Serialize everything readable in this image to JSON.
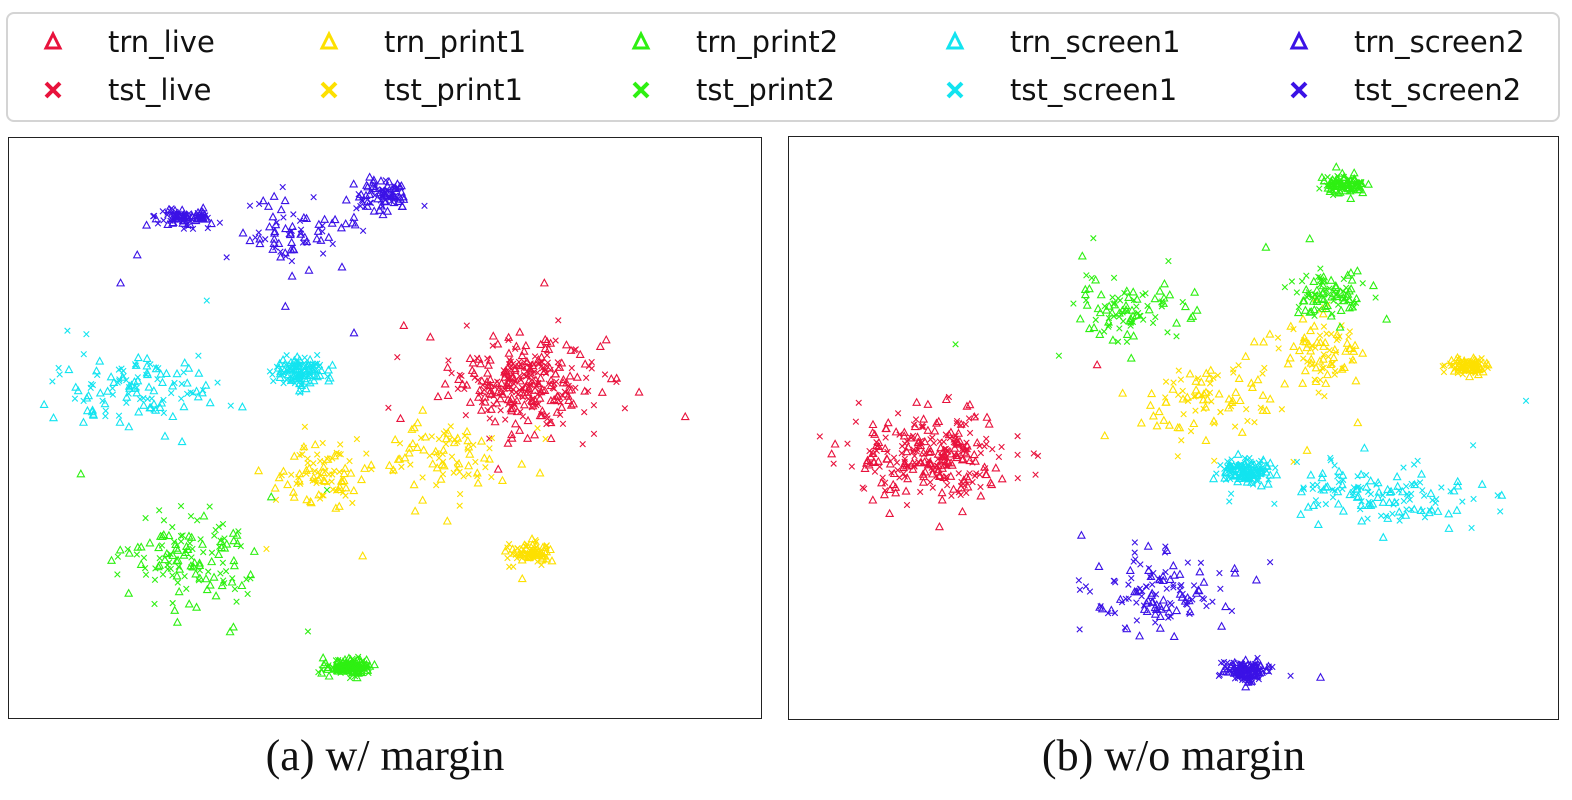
{
  "legend": {
    "entries": [
      {
        "key": "trn_live",
        "label": "trn_live",
        "marker": "triangle",
        "color": "#e8123c"
      },
      {
        "key": "tst_live",
        "label": "tst_live",
        "marker": "x",
        "color": "#e8123c"
      },
      {
        "key": "trn_print1",
        "label": "trn_print1",
        "marker": "triangle",
        "color": "#fde000"
      },
      {
        "key": "tst_print1",
        "label": "tst_print1",
        "marker": "x",
        "color": "#fde000"
      },
      {
        "key": "trn_print2",
        "label": "trn_print2",
        "marker": "triangle",
        "color": "#2ef012"
      },
      {
        "key": "tst_print2",
        "label": "tst_print2",
        "marker": "x",
        "color": "#2ef012"
      },
      {
        "key": "trn_screen1",
        "label": "trn_screen1",
        "marker": "triangle",
        "color": "#12e4f0"
      },
      {
        "key": "tst_screen1",
        "label": "tst_screen1",
        "marker": "x",
        "color": "#12e4f0"
      },
      {
        "key": "trn_screen2",
        "label": "trn_screen2",
        "marker": "triangle",
        "color": "#3b12e6"
      },
      {
        "key": "tst_screen2",
        "label": "tst_screen2",
        "marker": "x",
        "color": "#3b12e6"
      }
    ]
  },
  "captions": {
    "a": "(a) w/ margin",
    "b": "(b) w/o margin"
  },
  "chart_data": [
    {
      "type": "scatter",
      "caption": "(a) w/ margin",
      "xlim": [
        0,
        100
      ],
      "ylim": [
        0,
        100
      ],
      "grid": false,
      "axes_visible": false,
      "clusters": [
        {
          "class": "live",
          "points": 300,
          "blobs": [
            [
              69,
              58,
              9,
              7.5
            ]
          ]
        },
        {
          "class": "print1",
          "points": 260,
          "blobs": [
            [
              58,
              44,
              8,
              7
            ],
            [
              70,
              27,
              3,
              2
            ],
            [
              42,
              41,
              6,
              6
            ]
          ]
        },
        {
          "class": "print2",
          "points": 270,
          "blobs": [
            [
              23,
              26,
              8,
              7.5
            ],
            [
              45,
              6.5,
              3,
              1.5
            ]
          ]
        },
        {
          "class": "screen1",
          "points": 240,
          "blobs": [
            [
              16,
              57,
              10,
              5.5
            ],
            [
              38,
              60,
              3,
              2.5
            ]
          ]
        },
        {
          "class": "screen2",
          "points": 240,
          "blobs": [
            [
              38,
              85,
              8,
              6
            ],
            [
              22,
              88,
              3.5,
              1.5
            ],
            [
              50,
              92,
              3,
              2.5
            ]
          ]
        }
      ]
    },
    {
      "type": "scatter",
      "caption": "(b) w/o margin",
      "xlim": [
        0,
        100
      ],
      "ylim": [
        0,
        100
      ],
      "grid": false,
      "axes_visible": false,
      "clusters": [
        {
          "class": "live",
          "points": 280,
          "blobs": [
            [
              18,
              45,
              9.5,
              7
            ]
          ]
        },
        {
          "class": "print1",
          "points": 260,
          "blobs": [
            [
              54,
              55,
              8,
              7
            ],
            [
              70,
              64,
              5,
              6
            ],
            [
              90,
              61,
              2.5,
              1.5
            ]
          ]
        },
        {
          "class": "print2",
          "points": 280,
          "blobs": [
            [
              44,
              71,
              7,
              5
            ],
            [
              71,
              74,
              4.5,
              3.5
            ],
            [
              73,
              94,
              3,
              1.5
            ]
          ]
        },
        {
          "class": "screen1",
          "points": 270,
          "blobs": [
            [
              78,
              38,
              11,
              5
            ],
            [
              60,
              42,
              3,
              2
            ]
          ]
        },
        {
          "class": "screen2",
          "points": 250,
          "blobs": [
            [
              48,
              20,
              8,
              6
            ],
            [
              60,
              6,
              2.5,
              1.8
            ]
          ]
        }
      ]
    }
  ]
}
